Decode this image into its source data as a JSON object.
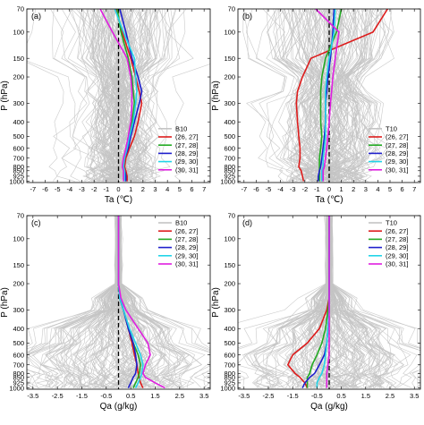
{
  "chart_data": [
    {
      "panel_label": "(a)",
      "type": "line",
      "xlabel": "Ta (℃)",
      "ylabel": "P (hPa)",
      "xlim": [
        -7.5,
        7.5
      ],
      "xticks": [
        "-7",
        "-6",
        "-5",
        "-4",
        "-3",
        "-2",
        "-1",
        "0",
        "1",
        "2",
        "3",
        "4",
        "5",
        "6",
        "7"
      ],
      "ylim_hPa": [
        1020,
        70
      ],
      "yticks": [
        "70",
        "100",
        "150",
        "200",
        "300",
        "400",
        "500",
        "600",
        "700",
        "800",
        "850",
        "925",
        "1000"
      ],
      "y_scale": "log-pressure",
      "p_levels": [
        70,
        100,
        150,
        200,
        250,
        300,
        400,
        500,
        600,
        700,
        800,
        850,
        925,
        1000
      ],
      "legend_position": "lower-right",
      "spaghetti_color": "#c4c4c4",
      "spaghetti_name": "B10",
      "series": [
        {
          "name": "(26, 27]",
          "color": "#dd1c1c",
          "x": [
            -0.2,
            0.3,
            1.0,
            1.4,
            1.7,
            1.9,
            1.6,
            1.3,
            0.9,
            0.6,
            0.5,
            0.6,
            0.7,
            0.7
          ]
        },
        {
          "name": "(27, 28]",
          "color": "#22aa22",
          "x": [
            -0.1,
            0.2,
            0.8,
            1.1,
            1.2,
            1.3,
            1.1,
            0.9,
            0.7,
            0.5,
            0.4,
            0.5,
            0.6,
            0.6
          ]
        },
        {
          "name": "(28, 29]",
          "color": "#1f1fcc",
          "x": [
            0.1,
            0.6,
            1.1,
            1.6,
            1.9,
            1.7,
            1.3,
            1.0,
            0.8,
            0.5,
            0.4,
            0.5,
            0.6,
            0.6
          ]
        },
        {
          "name": "(29, 30]",
          "color": "#22d4e8",
          "x": [
            -0.3,
            0.4,
            1.3,
            1.4,
            1.5,
            1.4,
            1.2,
            0.9,
            0.7,
            0.5,
            0.4,
            0.5,
            0.5,
            0.5
          ]
        },
        {
          "name": "(30, 31]",
          "color": "#e01ee0",
          "x": [
            -1.5,
            -0.5,
            0.7,
            1.0,
            1.1,
            1.1,
            1.0,
            0.8,
            0.6,
            0.4,
            0.3,
            0.4,
            0.4,
            0.4
          ]
        }
      ]
    },
    {
      "panel_label": "(b)",
      "type": "line",
      "xlabel": "Ta (℃)",
      "ylabel": "P (hPa)",
      "xlim": [
        -7.5,
        7.5
      ],
      "xticks": [
        "-7",
        "-6",
        "-5",
        "-4",
        "-3",
        "-2",
        "-1",
        "0",
        "1",
        "2",
        "3",
        "4",
        "5",
        "6",
        "7"
      ],
      "ylim_hPa": [
        1020,
        70
      ],
      "yticks": [
        "70",
        "100",
        "150",
        "200",
        "300",
        "400",
        "500",
        "600",
        "700",
        "800",
        "850",
        "925",
        "1000"
      ],
      "y_scale": "log-pressure",
      "p_levels": [
        70,
        100,
        150,
        200,
        250,
        300,
        400,
        500,
        600,
        700,
        800,
        850,
        925,
        1000
      ],
      "legend_position": "lower-right",
      "spaghetti_color": "#c4c4c4",
      "spaghetti_name": "T10",
      "series": [
        {
          "name": "(26, 27]",
          "color": "#dd1c1c",
          "x": [
            4.8,
            3.6,
            -1.5,
            -2.2,
            -2.6,
            -2.7,
            -2.6,
            -2.5,
            -2.4,
            -2.4,
            -2.5,
            -2.3,
            -2.2,
            -2.1
          ]
        },
        {
          "name": "(27, 28]",
          "color": "#22aa22",
          "x": [
            1.0,
            0.6,
            -0.3,
            -0.6,
            -0.7,
            -0.7,
            -0.7,
            -0.6,
            -0.7,
            -0.8,
            -0.8,
            -0.8,
            -0.8,
            -0.8
          ]
        },
        {
          "name": "(28, 29]",
          "color": "#1f1fcc",
          "x": [
            0.4,
            0.3,
            0.1,
            -0.1,
            -0.2,
            -0.3,
            -0.3,
            -0.4,
            -0.5,
            -0.6,
            -0.7,
            -0.8,
            -0.9,
            -0.9
          ]
        },
        {
          "name": "(29, 30]",
          "color": "#22d4e8",
          "x": [
            0.5,
            0.4,
            0.0,
            -0.2,
            -0.3,
            -0.3,
            -0.3,
            -0.3,
            -0.4,
            -0.5,
            -0.5,
            -0.6,
            -0.6,
            -0.6
          ]
        },
        {
          "name": "(30, 31]",
          "color": "#e01ee0",
          "x": [
            -1.1,
            0.8,
            0.5,
            0.3,
            0.2,
            0.1,
            0.0,
            -0.1,
            -0.2,
            -0.3,
            -0.4,
            -0.5,
            -0.5,
            -0.5
          ]
        }
      ]
    },
    {
      "panel_label": "(c)",
      "type": "line",
      "xlabel": "Qa (g/kg)",
      "ylabel": "P (hPa)",
      "xlim": [
        -3.75,
        3.75
      ],
      "xticks": [
        "-3.5",
        "-2.5",
        "-1.5",
        "-0.5",
        "0.5",
        "1.5",
        "2.5",
        "3.5"
      ],
      "ylim_hPa": [
        1020,
        70
      ],
      "yticks": [
        "70",
        "100",
        "150",
        "200",
        "300",
        "400",
        "500",
        "600",
        "700",
        "800",
        "850",
        "925",
        "1000"
      ],
      "y_scale": "log-pressure",
      "p_levels": [
        70,
        100,
        150,
        200,
        250,
        300,
        400,
        500,
        600,
        700,
        800,
        850,
        925,
        1000
      ],
      "legend_position": "top-right",
      "spaghetti_color": "#c4c4c4",
      "spaghetti_name": "B10",
      "series": [
        {
          "name": "(26, 27]",
          "color": "#dd1c1c",
          "x": [
            0.0,
            0.0,
            0.0,
            0.0,
            0.05,
            0.2,
            0.4,
            0.55,
            0.65,
            0.75,
            0.8,
            0.85,
            0.9,
            1.0
          ]
        },
        {
          "name": "(27, 28]",
          "color": "#22aa22",
          "x": [
            0.0,
            0.0,
            0.0,
            0.0,
            0.05,
            0.2,
            0.4,
            0.6,
            0.8,
            0.9,
            0.85,
            0.8,
            0.7,
            0.6
          ]
        },
        {
          "name": "(28, 29]",
          "color": "#1f1fcc",
          "x": [
            0.0,
            0.0,
            0.0,
            0.0,
            0.05,
            0.2,
            0.4,
            0.6,
            0.7,
            0.75,
            0.7,
            0.6,
            0.5,
            0.4
          ]
        },
        {
          "name": "(29, 30]",
          "color": "#22d4e8",
          "x": [
            0.0,
            0.0,
            0.0,
            0.0,
            0.05,
            0.2,
            0.45,
            0.7,
            0.9,
            1.0,
            0.95,
            0.9,
            0.8,
            0.7
          ]
        },
        {
          "name": "(30, 31]",
          "color": "#e01ee0",
          "x": [
            0.0,
            0.0,
            0.0,
            0.0,
            0.1,
            0.3,
            0.8,
            1.2,
            1.3,
            1.1,
            1.0,
            1.1,
            1.5,
            1.9
          ]
        }
      ]
    },
    {
      "panel_label": "(d)",
      "type": "line",
      "xlabel": "Qa (g/kg)",
      "ylabel": "P (hPa)",
      "xlim": [
        -3.75,
        3.75
      ],
      "xticks": [
        "-3.5",
        "-2.5",
        "-1.5",
        "-0.5",
        "0.5",
        "1.5",
        "2.5",
        "3.5"
      ],
      "ylim_hPa": [
        1020,
        70
      ],
      "yticks": [
        "70",
        "100",
        "150",
        "200",
        "300",
        "400",
        "500",
        "600",
        "700",
        "800",
        "850",
        "925",
        "1000"
      ],
      "y_scale": "log-pressure",
      "p_levels": [
        70,
        100,
        150,
        200,
        250,
        300,
        400,
        500,
        600,
        700,
        800,
        850,
        925,
        1000
      ],
      "legend_position": "top-right",
      "spaghetti_color": "#c4c4c4",
      "spaghetti_name": "T10",
      "series": [
        {
          "name": "(26, 27]",
          "color": "#dd1c1c",
          "x": [
            0.0,
            0.0,
            0.0,
            0.0,
            0.0,
            -0.1,
            -0.4,
            -0.9,
            -1.5,
            -1.7,
            -1.4,
            -1.2,
            -1.0,
            -0.9
          ]
        },
        {
          "name": "(27, 28]",
          "color": "#22aa22",
          "x": [
            0.0,
            0.0,
            0.0,
            0.0,
            0.0,
            -0.05,
            -0.15,
            -0.3,
            -0.5,
            -0.7,
            -0.8,
            -0.9,
            -0.9,
            -0.9
          ]
        },
        {
          "name": "(28, 29]",
          "color": "#1f1fcc",
          "x": [
            0.0,
            0.0,
            0.0,
            0.0,
            0.0,
            0.0,
            -0.05,
            -0.1,
            -0.2,
            -0.4,
            -0.6,
            -0.8,
            -1.0,
            -1.1
          ]
        },
        {
          "name": "(29, 30]",
          "color": "#22d4e8",
          "x": [
            0.0,
            0.0,
            0.0,
            0.0,
            0.0,
            0.0,
            -0.05,
            -0.1,
            -0.15,
            -0.2,
            -0.3,
            -0.4,
            -0.5,
            -0.5
          ]
        },
        {
          "name": "(30, 31]",
          "color": "#e01ee0",
          "x": [
            0.0,
            0.0,
            0.0,
            0.0,
            0.0,
            0.0,
            0.0,
            0.0,
            0.0,
            -0.05,
            -0.1,
            -0.1,
            -0.1,
            -0.1
          ]
        }
      ]
    }
  ]
}
